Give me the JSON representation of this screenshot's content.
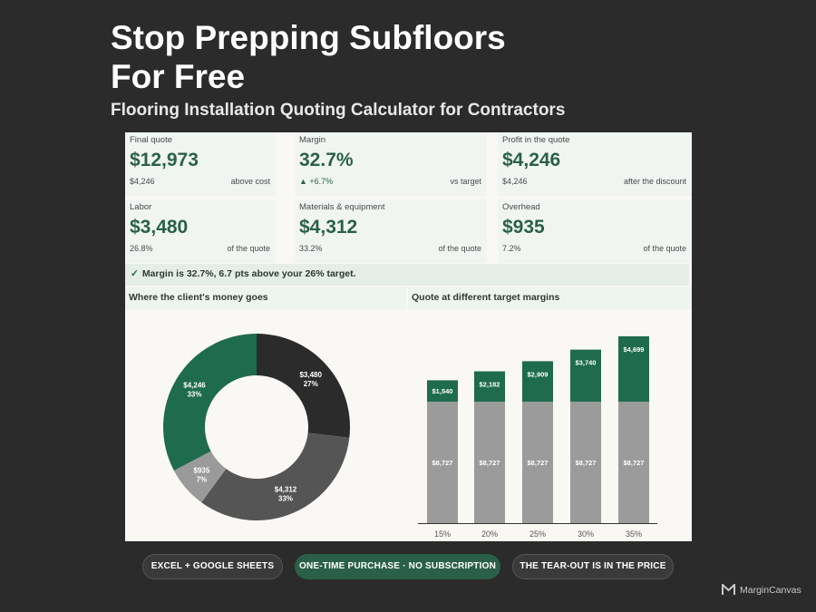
{
  "headline_line1": "Stop Prepping Subfloors",
  "headline_line2": "For Free",
  "subtitle": "Flooring Installation Quoting Calculator for Contractors",
  "kpis": [
    {
      "label": "Final quote",
      "value": "$12,973",
      "sub": "$4,246",
      "note": "above cost"
    },
    {
      "label": "Margin",
      "value": "32.7%",
      "sub": "▲ +6.7%",
      "note": "vs target"
    },
    {
      "label": "Profit in the quote",
      "value": "$4,246",
      "sub": "$4,246",
      "note": "after the discount"
    },
    {
      "label": "Labor",
      "value": "$3,480",
      "sub": "26.8%",
      "note": "of the quote"
    },
    {
      "label": "Materials & equipment",
      "value": "$4,312",
      "sub": "33.2%",
      "note": "of the quote"
    },
    {
      "label": "Overhead",
      "value": "$935",
      "sub": "7.2%",
      "note": "of the quote"
    }
  ],
  "banner": {
    "check": "✓",
    "text": "Margin is 32.7%, 6.7 pts above your 26% target."
  },
  "section_left": "Where the client's money goes",
  "section_right": "Quote at different target margins",
  "colors": {
    "green": "#1f6b4e",
    "dark": "#2b2b2b",
    "mid": "#555555",
    "light": "#9a9a9a",
    "cost": "#9b9b9b",
    "profit": "#1f6b4e"
  },
  "chart_data": [
    {
      "type": "pie",
      "style": "donut",
      "slices": [
        {
          "value": 3480,
          "label": "$3,480",
          "pct": "27%",
          "color": "#2b2b2b"
        },
        {
          "value": 4312,
          "label": "$4,312",
          "pct": "33%",
          "color": "#555555"
        },
        {
          "value": 935,
          "label": "$935",
          "pct": "7%",
          "color": "#9a9a9a"
        },
        {
          "value": 4246,
          "label": "$4,246",
          "pct": "33%",
          "color": "#1f6b4e"
        }
      ]
    },
    {
      "type": "bar",
      "stacked": true,
      "categories": [
        "15%",
        "20%",
        "25%",
        "30%",
        "35%"
      ],
      "series": [
        {
          "values": [
            8727,
            8727,
            8727,
            8727,
            8727
          ],
          "labels": [
            "$8,727",
            "$8,727",
            "$8,727",
            "$8,727",
            "$8,727"
          ],
          "color": "#9b9b9b"
        },
        {
          "values": [
            1540,
            2182,
            2909,
            3740,
            4699
          ],
          "labels": [
            "$1,540",
            "$2,182",
            "$2,909",
            "$3,740",
            "$4,699"
          ],
          "color": "#1f6b4e"
        }
      ]
    }
  ],
  "pills": [
    "EXCEL + GOOGLE SHEETS",
    "ONE-TIME PURCHASE · NO SUBSCRIPTION",
    "THE TEAR-OUT IS IN THE PRICE"
  ],
  "brand": "MarginCanvas"
}
